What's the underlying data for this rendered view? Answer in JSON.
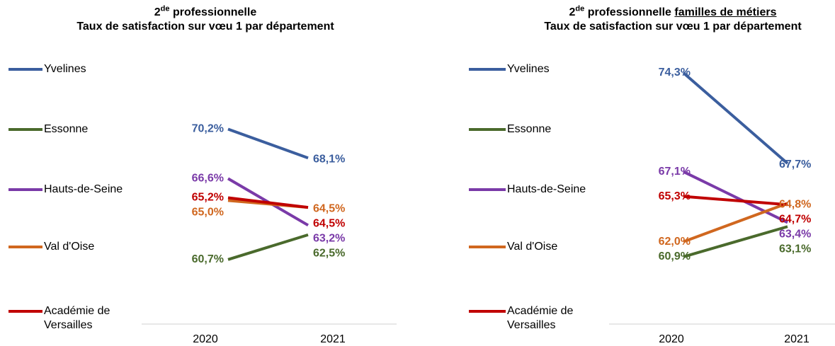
{
  "chart_data": [
    {
      "type": "line",
      "title_number": "2",
      "title_superscript": "de",
      "title": "professionnelle",
      "subtitle": "Taux de satisfaction sur vœu 1 par département",
      "categories": [
        "2020",
        "2021"
      ],
      "ylim": [
        56,
        76
      ],
      "series": [
        {
          "name": "Yvelines",
          "color": "#3b5e9e",
          "values": [
            70.2,
            68.1
          ],
          "value_labels": [
            "70,2%",
            "68,1%"
          ]
        },
        {
          "name": "Essonne",
          "color": "#4a6a2c",
          "values": [
            60.7,
            62.5
          ],
          "value_labels": [
            "60,7%",
            "62,5%"
          ]
        },
        {
          "name": "Hauts-de-Seine",
          "color": "#7a3aa8",
          "values": [
            66.6,
            63.2
          ],
          "value_labels": [
            "66,6%",
            "63,2%"
          ]
        },
        {
          "name": "Val d'Oise",
          "color": "#d0671f",
          "values": [
            65.0,
            64.5
          ],
          "value_labels": [
            "65,0%",
            "64,5%"
          ]
        },
        {
          "name": "Académie de Versailles",
          "color": "#c00000",
          "values": [
            65.2,
            64.5
          ],
          "value_labels": [
            "65,2%",
            "64,5%"
          ]
        }
      ]
    },
    {
      "type": "line",
      "title_number": "2",
      "title_superscript": "de",
      "title": "professionnelle",
      "title_underlined": "familles de métiers",
      "subtitle": "Taux de satisfaction sur vœu 1 par département",
      "categories": [
        "2020",
        "2021"
      ],
      "ylim": [
        56,
        76
      ],
      "series": [
        {
          "name": "Yvelines",
          "color": "#3b5e9e",
          "values": [
            74.3,
            67.7
          ],
          "value_labels": [
            "74,3%",
            "67,7%"
          ]
        },
        {
          "name": "Essonne",
          "color": "#4a6a2c",
          "values": [
            60.9,
            63.1
          ],
          "value_labels": [
            "60,9%",
            "63,1%"
          ]
        },
        {
          "name": "Hauts-de-Seine",
          "color": "#7a3aa8",
          "values": [
            67.1,
            63.4
          ],
          "value_labels": [
            "67,1%",
            "63,4%"
          ]
        },
        {
          "name": "Val d'Oise",
          "color": "#d0671f",
          "values": [
            62.0,
            64.8
          ],
          "value_labels": [
            "62,0%",
            "64,8%"
          ]
        },
        {
          "name": "Académie de Versailles",
          "color": "#c00000",
          "values": [
            65.3,
            64.7
          ],
          "value_labels": [
            "65,3%",
            "64,7%"
          ]
        }
      ]
    }
  ]
}
